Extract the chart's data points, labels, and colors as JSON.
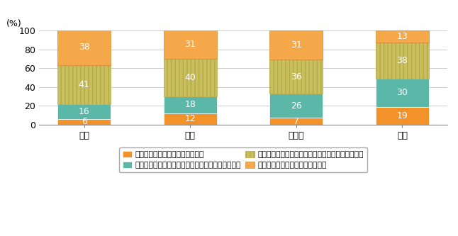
{
  "categories": [
    "日本",
    "米国",
    "ドイツ",
    "中国"
  ],
  "series": [
    {
      "label": "便利・快適性を重視すべきである",
      "values": [
        6,
        12,
        7,
        19
      ],
      "color": "#F4922A",
      "hatch": null,
      "edgecolor": "#ffffff"
    },
    {
      "label": "どちらかというと便利・快適性を重視すべきである",
      "values": [
        16,
        18,
        26,
        30
      ],
      "color": "#5BB8A8",
      "hatch": null,
      "edgecolor": "#ffffff"
    },
    {
      "label": "どちらかというと安心・安全性を重視すべきである",
      "values": [
        41,
        40,
        36,
        38
      ],
      "color": "#C8C060",
      "hatch": "|||",
      "edgecolor": "#B8A840"
    },
    {
      "label": "安心・安全性を重視すべきである",
      "values": [
        38,
        31,
        31,
        13
      ],
      "color": "#F4A84A",
      "hatch": "===",
      "edgecolor": "#D08830"
    }
  ],
  "ylabel": "(%)",
  "ylim": [
    0,
    100
  ],
  "yticks": [
    0,
    20,
    40,
    60,
    80,
    100
  ],
  "bar_width": 0.5,
  "text_color": "#ffffff",
  "text_fontsize": 9,
  "legend_fontsize": 7.8,
  "axis_label_fontsize": 9,
  "tick_fontsize": 9,
  "background_color": "#ffffff",
  "grid_color": "#cccccc",
  "legend_order": [
    0,
    1,
    2,
    3
  ]
}
